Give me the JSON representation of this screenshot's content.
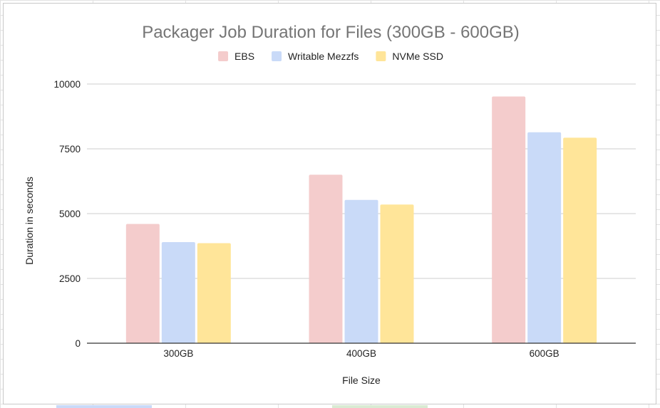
{
  "chart_data": {
    "type": "bar",
    "title": "Packager Job Duration for Files (300GB - 600GB)",
    "xlabel": "File Size",
    "ylabel": "Duration in seconds",
    "categories": [
      "300GB",
      "400GB",
      "600GB"
    ],
    "series": [
      {
        "name": "EBS",
        "color": "#f4cccc",
        "values": [
          4600,
          6500,
          9520
        ]
      },
      {
        "name": "Writable Mezzfs",
        "color": "#c9daf8",
        "values": [
          3900,
          5530,
          8140
        ]
      },
      {
        "name": "NVMe SSD",
        "color": "#ffe599",
        "values": [
          3860,
          5350,
          7930
        ]
      }
    ],
    "ylim": [
      0,
      10000
    ],
    "yticks": [
      "0",
      "2500",
      "5000",
      "7500",
      "10000"
    ],
    "ytick_values": [
      0,
      2500,
      5000,
      7500,
      10000
    ],
    "grid": true,
    "legend_position": "top"
  }
}
